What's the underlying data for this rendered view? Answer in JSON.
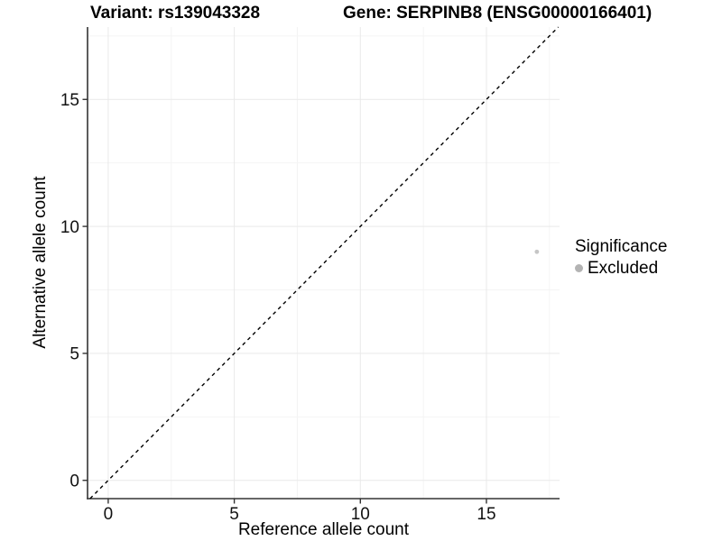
{
  "header": {
    "variant_title": "Variant: rs139043328",
    "gene_title": "Gene: SERPINB8 (ENSG00000166401)"
  },
  "chart_data": {
    "type": "scatter",
    "title": "Variant: rs139043328  |  Gene: SERPINB8 (ENSG00000166401)",
    "xlabel": "Reference allele count",
    "ylabel": "Alternative allele count",
    "xlim": [
      -0.82,
      17.9
    ],
    "ylim": [
      -0.72,
      17.85
    ],
    "x_ticks": [
      0,
      5,
      10,
      15
    ],
    "y_ticks": [
      0,
      5,
      10,
      15
    ],
    "x_minor_breaks": [
      2.5,
      7.5,
      12.5,
      17.5
    ],
    "y_minor_breaks": [
      2.5,
      7.5,
      12.5,
      17.5
    ],
    "grid": true,
    "identity_line": {
      "equation": "y = x",
      "style": "dashed",
      "color": "#000000"
    },
    "series": [
      {
        "name": "Excluded",
        "points": [
          {
            "reference_count": 17,
            "alternative_count": 9
          }
        ],
        "color": "#c6c6c6",
        "point_radius": 2.4
      }
    ],
    "legend": {
      "title": "Significance",
      "position": "right",
      "items": [
        {
          "label": "Excluded",
          "color": "#b3b3b3"
        }
      ]
    }
  },
  "colors": {
    "background": "#ffffff",
    "grid_major": "#e9e9e9",
    "grid_minor": "#f4f4f4",
    "axis_line": "#333333",
    "tick_text": "#111111"
  }
}
